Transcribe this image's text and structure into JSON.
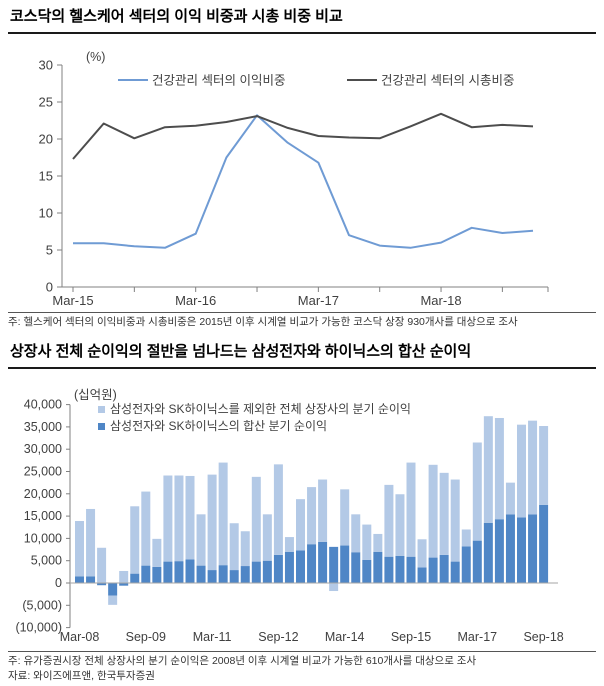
{
  "figure1": {
    "title": "코스닥의 헬스케어 섹터의 이익 비중과 시총 비중 비교",
    "unit_label": "(%)",
    "note": "주: 헬스케어 섹터의 이익비중과 시총비중은 2015년 이후 시계열 비교가 가능한 코스닥 상장 930개사를 대상으로 조사"
  },
  "figure2": {
    "title": "상장사 전체 순이익의 절반을 넘나드는 삼성전자와 하이닉스의 합산 순이익",
    "unit_label": "(십억원)",
    "note": "주: 유가증권시장 전체 상장사의 분기 순이익은 2008년 이후 시계열 비교가 가능한 610개사를 대상으로 조사",
    "source": "자료: 와이즈에프앤, 한국투자증권"
  },
  "chart_data": [
    {
      "type": "line",
      "title": "코스닥의 헬스케어 섹터의 이익 비중과 시총 비중 비교",
      "unit": "(%)",
      "x": [
        "Mar-15",
        "Jun-15",
        "Sep-15",
        "Dec-15",
        "Mar-16",
        "Jun-16",
        "Sep-16",
        "Dec-16",
        "Mar-17",
        "Jun-17",
        "Sep-17",
        "Dec-17",
        "Mar-18",
        "Jun-18",
        "Sep-18",
        "Dec-18"
      ],
      "xtick_labels": [
        "Mar-15",
        "Mar-16",
        "Mar-17",
        "Mar-18"
      ],
      "ylim": [
        0,
        30
      ],
      "ytick_step": 5,
      "ytick_labels": [
        "0",
        "5",
        "10",
        "15",
        "20",
        "25",
        "30"
      ],
      "grid": false,
      "legend_position": "top-inside",
      "series": [
        {
          "name": "건강관리 섹터의 이익비중",
          "color": "#6f9bd4",
          "values": [
            5.9,
            5.9,
            5.5,
            5.3,
            7.2,
            17.5,
            23.2,
            19.5,
            16.8,
            7.0,
            5.6,
            5.3,
            6.0,
            8.0,
            7.3,
            7.6
          ]
        },
        {
          "name": "건강관리 섹터의 시총비중",
          "color": "#4d4d4d",
          "values": [
            17.3,
            22.1,
            20.1,
            21.6,
            21.8,
            22.3,
            23.1,
            21.5,
            20.4,
            20.2,
            20.1,
            21.7,
            23.4,
            21.6,
            21.9,
            21.7
          ]
        }
      ]
    },
    {
      "type": "stacked_bar",
      "title": "상장사 전체 순이익의 절반을 넘나드는 삼성전자와 하이닉스의 합산 순이익",
      "unit": "(십억원)",
      "categories": [
        "Mar-08",
        "Jun-08",
        "Sep-08",
        "Dec-08",
        "Mar-09",
        "Jun-09",
        "Sep-09",
        "Dec-09",
        "Mar-10",
        "Jun-10",
        "Sep-10",
        "Dec-10",
        "Mar-11",
        "Jun-11",
        "Sep-11",
        "Dec-11",
        "Mar-12",
        "Jun-12",
        "Sep-12",
        "Dec-12",
        "Mar-13",
        "Jun-13",
        "Sep-13",
        "Dec-13",
        "Mar-14",
        "Jun-14",
        "Sep-14",
        "Dec-14",
        "Mar-15",
        "Jun-15",
        "Sep-15",
        "Dec-15",
        "Mar-16",
        "Jun-16",
        "Sep-16",
        "Dec-16",
        "Mar-17",
        "Jun-17",
        "Sep-17",
        "Dec-17",
        "Mar-18",
        "Jun-18",
        "Sep-18"
      ],
      "xtick_labels": [
        "Mar-08",
        "Sep-09",
        "Mar-11",
        "Sep-12",
        "Mar-14",
        "Sep-15",
        "Mar-17",
        "Sep-18"
      ],
      "ylim": [
        -10000,
        40000
      ],
      "ytick_step": 5000,
      "ytick_labels": [
        "(10,000)",
        "(5,000)",
        "0",
        "5,000",
        "10,000",
        "15,000",
        "20,000",
        "25,000",
        "30,000",
        "35,000",
        "40,000"
      ],
      "stacking": "samsung_sk_hynix segment drawn from zero, remainder stacked on top; negative values hang below zero",
      "legend_position": "top-inside",
      "series": [
        {
          "name": "삼성전자와 SK하이닉스를 제외한 전체 상장사의 분기 순이익",
          "color": "#b3c9e6",
          "role": "rest-of-market",
          "values": [
            12400,
            15100,
            7900,
            -2100,
            2700,
            15100,
            16600,
            6300,
            19300,
            19200,
            18700,
            11500,
            21400,
            23000,
            10500,
            7800,
            19000,
            10400,
            20300,
            3300,
            11500,
            12800,
            14000,
            -1800,
            12600,
            8500,
            7900,
            4000,
            16100,
            13800,
            21100,
            6300,
            20800,
            18400,
            18400,
            3800,
            22000,
            23900,
            22700,
            7100,
            20800,
            21000,
            17700
          ]
        },
        {
          "name": "삼성전자와 SK하이닉스의 합산 분기 순이익",
          "color": "#4f86c6",
          "role": "samsung-sk-hynix",
          "values": [
            1500,
            1500,
            -500,
            -2800,
            -600,
            2100,
            3900,
            3600,
            4800,
            4900,
            5300,
            3900,
            2900,
            4000,
            2900,
            3800,
            4800,
            5000,
            6300,
            7000,
            7300,
            8700,
            9200,
            8100,
            8400,
            6900,
            5200,
            7000,
            5900,
            6100,
            5900,
            3500,
            5700,
            6300,
            4800,
            8200,
            9500,
            13500,
            14300,
            15400,
            14700,
            15400,
            17500
          ]
        }
      ]
    }
  ]
}
